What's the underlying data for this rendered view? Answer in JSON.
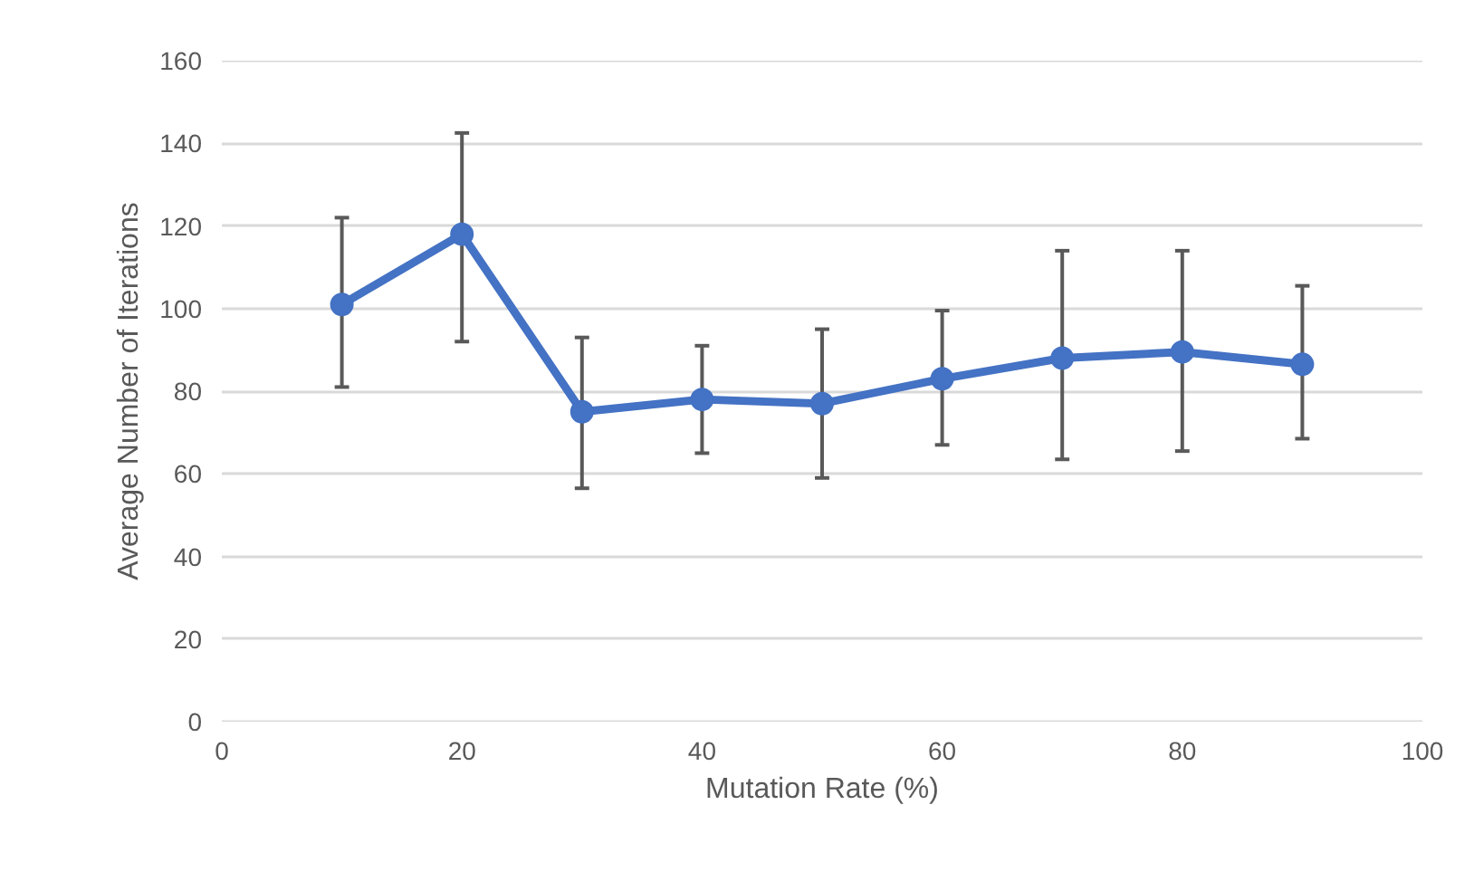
{
  "chart_data": {
    "type": "line",
    "xlabel": "Mutation Rate (%)",
    "ylabel": "Average Number of Iterations",
    "x": [
      10,
      20,
      30,
      40,
      50,
      60,
      70,
      80,
      90
    ],
    "series": [
      {
        "color": "#4472c4",
        "values": [
          101,
          118,
          75,
          78,
          77,
          83,
          88,
          89.5,
          86.5
        ],
        "errors": [
          [
            81,
            122
          ],
          [
            92,
            142.5
          ],
          [
            56.5,
            93
          ],
          [
            65,
            91
          ],
          [
            59,
            95
          ],
          [
            67,
            99.5
          ],
          [
            63.5,
            114
          ],
          [
            65.5,
            114
          ],
          [
            68.5,
            105.5
          ]
        ]
      }
    ],
    "xlim": [
      0,
      100
    ],
    "xticks": [
      0,
      20,
      40,
      60,
      80,
      100
    ],
    "ylim": [
      0,
      160
    ],
    "yticks": [
      0,
      20,
      40,
      60,
      80,
      100,
      120,
      140,
      160
    ],
    "grid": "y",
    "marker": "circle",
    "line_style": "solid"
  }
}
